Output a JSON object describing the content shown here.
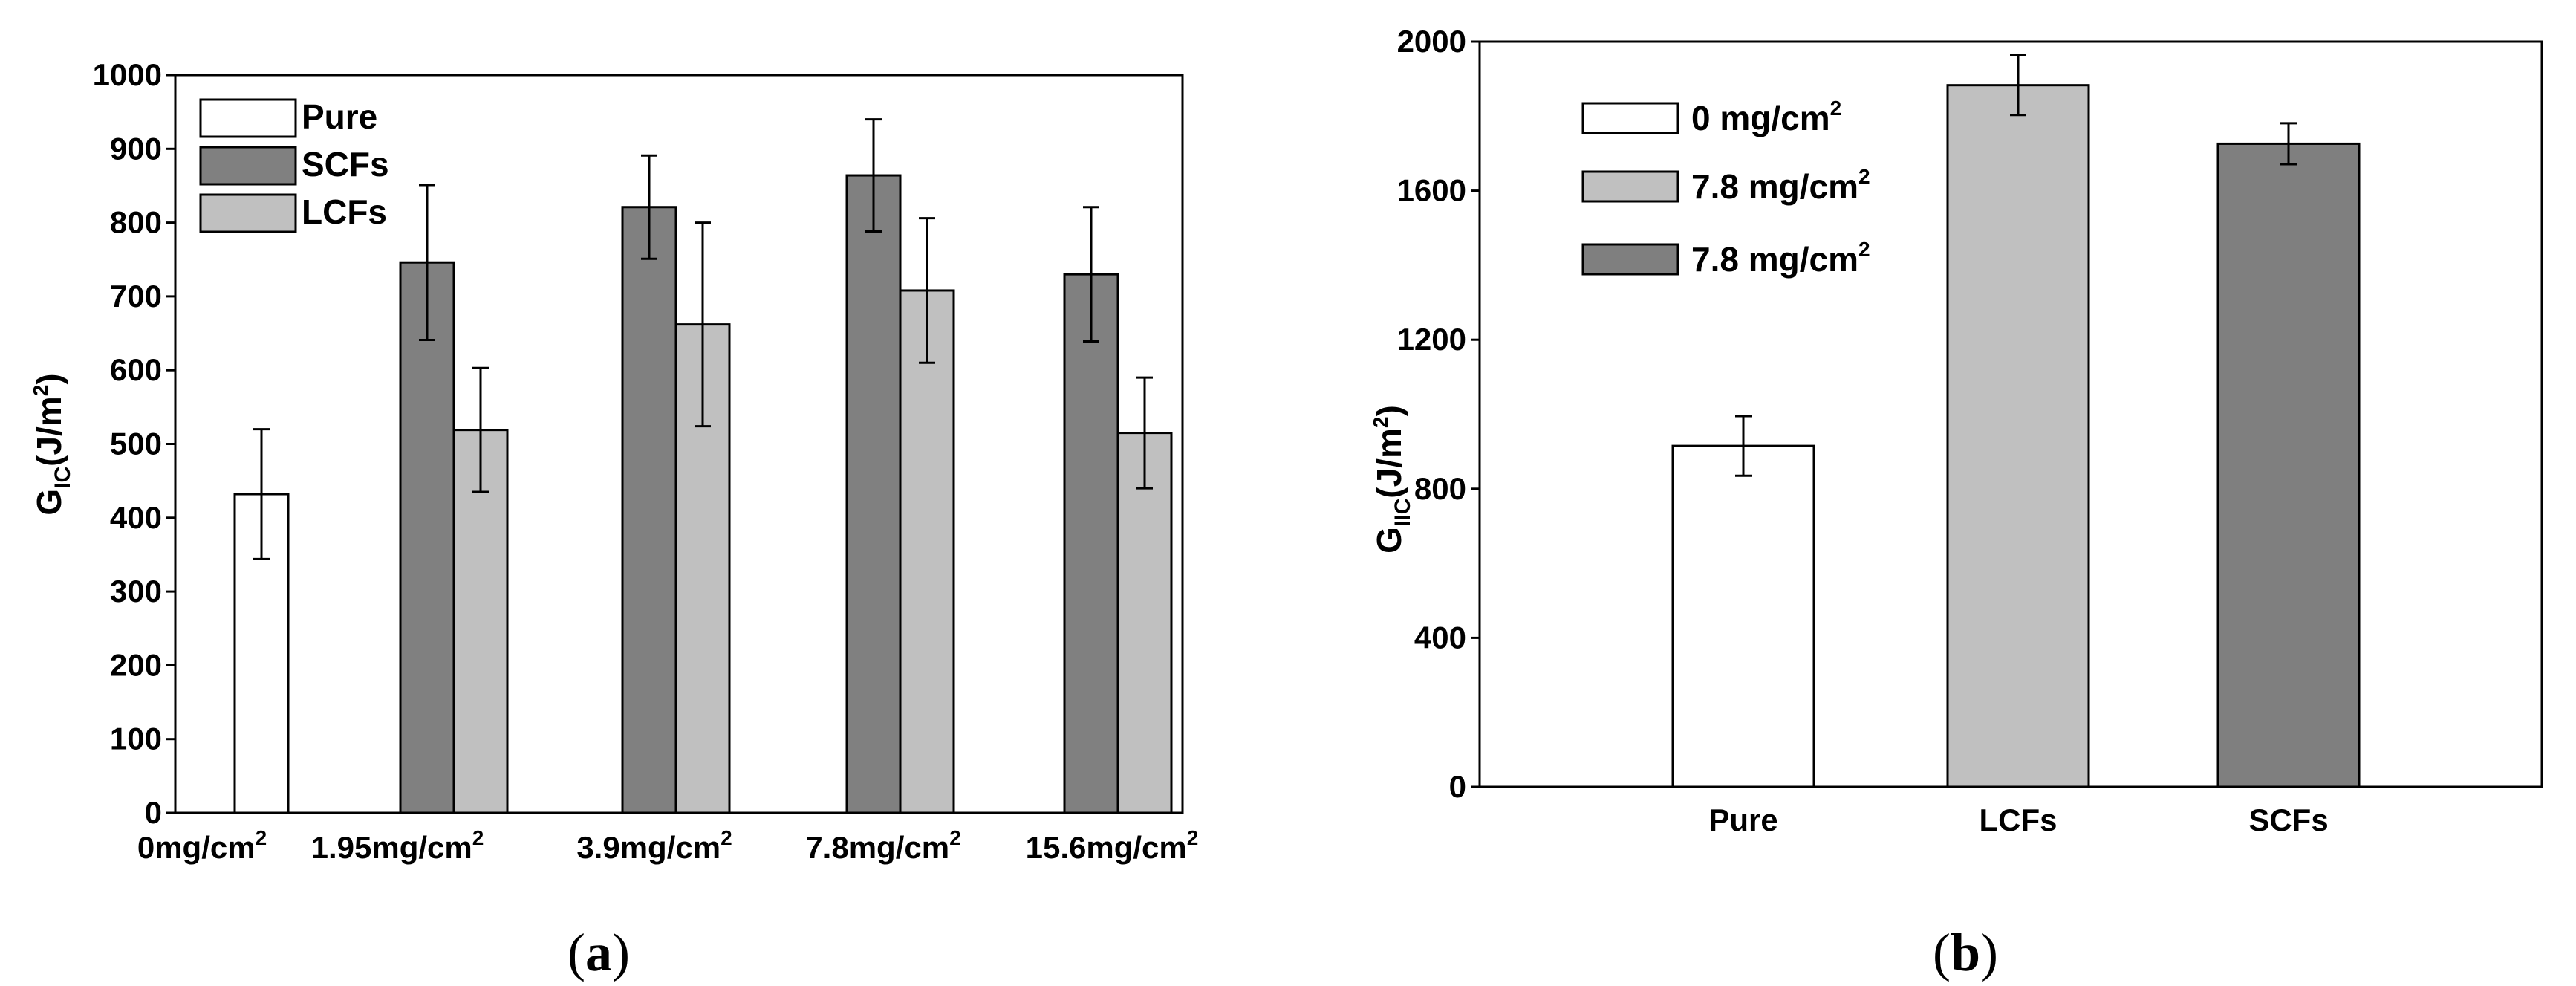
{
  "chart_data": [
    {
      "type": "bar",
      "panel_label": {
        "open": "(",
        "letter": "a",
        "close": ")"
      },
      "ylabel": {
        "main": "G",
        "sub": "IC",
        "rest": "(J/m",
        "sup": "2",
        "close": ")"
      },
      "ylim": [
        0,
        1000
      ],
      "yticks": [
        0,
        100,
        200,
        300,
        400,
        500,
        600,
        700,
        800,
        900,
        1000
      ],
      "categories": [
        {
          "main": "0mg/cm",
          "sup": "2"
        },
        {
          "main": "1.95mg/cm",
          "sup": "2"
        },
        {
          "main": "3.9mg/cm",
          "sup": "2"
        },
        {
          "main": "7.8mg/cm",
          "sup": "2"
        },
        {
          "main": "15.6mg/cm",
          "sup": "2"
        }
      ],
      "legend": {
        "position": "top-left"
      },
      "series": [
        {
          "name": "Pure",
          "color": "#ffffff",
          "values": [
            432,
            null,
            null,
            null,
            null
          ],
          "errors": [
            88,
            null,
            null,
            null,
            null
          ]
        },
        {
          "name": "SCFs",
          "color": "#808080",
          "values": [
            null,
            746,
            821,
            864,
            730
          ],
          "errors": [
            null,
            105,
            70,
            76,
            91
          ]
        },
        {
          "name": "LCFs",
          "color": "#c0c0c0",
          "values": [
            null,
            519,
            662,
            708,
            515
          ],
          "errors": [
            null,
            84,
            138,
            98,
            75
          ]
        }
      ]
    },
    {
      "type": "bar",
      "panel_label": {
        "open": "(",
        "letter": "b",
        "close": ")"
      },
      "ylabel": {
        "main": "G",
        "sub": "IIC",
        "rest": "(J/m",
        "sup": "2",
        "close": ")"
      },
      "ylim": [
        0,
        2000
      ],
      "yticks": [
        0,
        400,
        800,
        1200,
        1600,
        2000
      ],
      "categories": [
        "Pure",
        "LCFs",
        "SCFs"
      ],
      "values": [
        915,
        1883,
        1726
      ],
      "errors": [
        80,
        80,
        55
      ],
      "colors": [
        "#ffffff",
        "#c0c0c0",
        "#7f7f7f"
      ],
      "legend": {
        "position": "top-left",
        "entries": [
          {
            "main": "0 mg/cm",
            "sup": "2",
            "color": "#ffffff"
          },
          {
            "main": "7.8 mg/cm",
            "sup": "2",
            "color": "#c0c0c0"
          },
          {
            "main": "7.8 mg/cm",
            "sup": "2",
            "color": "#7f7f7f"
          }
        ]
      }
    }
  ]
}
